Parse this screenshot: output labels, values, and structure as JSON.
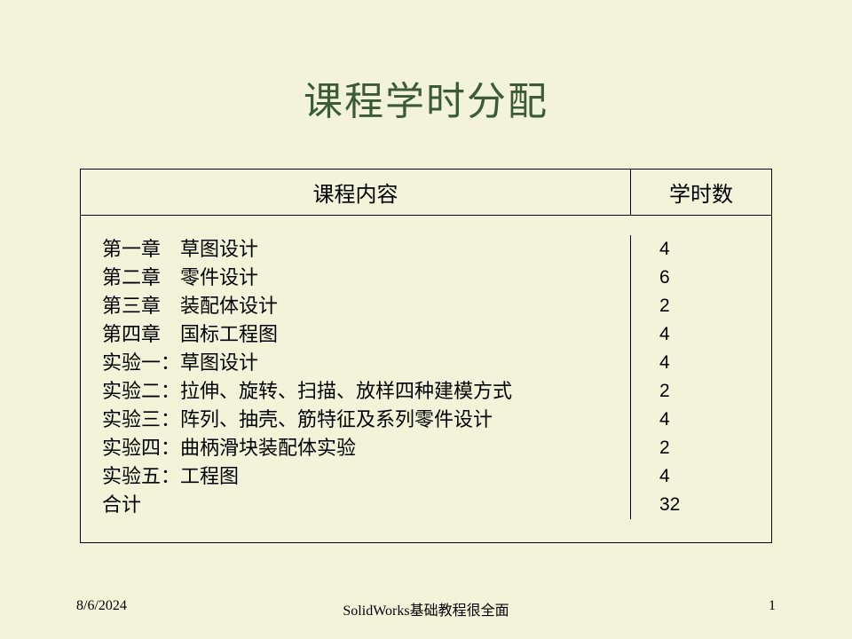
{
  "title": "课程学时分配",
  "title_color": "#3a5b34",
  "title_fontsize": 44,
  "background_color": "#f3f3da",
  "border_color": "#000000",
  "text_color": "#000000",
  "table": {
    "header_content": "课程内容",
    "header_hours": "学时数",
    "header_fontsize": 24,
    "row_fontsize": 22,
    "col_content_width": 620,
    "rows": [
      {
        "content": "第一章　草图设计",
        "hours": "4"
      },
      {
        "content": "第二章　零件设计",
        "hours": "6"
      },
      {
        "content": "第三章　装配体设计",
        "hours": "2"
      },
      {
        "content": "第四章　国标工程图",
        "hours": "4"
      },
      {
        "content": "实验一：草图设计",
        "hours": "4"
      },
      {
        "content": "实验二：拉伸、旋转、扫描、放样四种建模方式",
        "hours": "2"
      },
      {
        "content": "实验三：阵列、抽壳、筋特征及系列零件设计",
        "hours": "4"
      },
      {
        "content": "实验四：曲柄滑块装配体实验",
        "hours": "2"
      },
      {
        "content": "实验五：工程图",
        "hours": "4"
      },
      {
        "content": "合计",
        "hours": "32"
      }
    ]
  },
  "footer": {
    "date": "8/6/2024",
    "title": "SolidWorks基础教程很全面",
    "page": "1",
    "fontsize": 16
  }
}
